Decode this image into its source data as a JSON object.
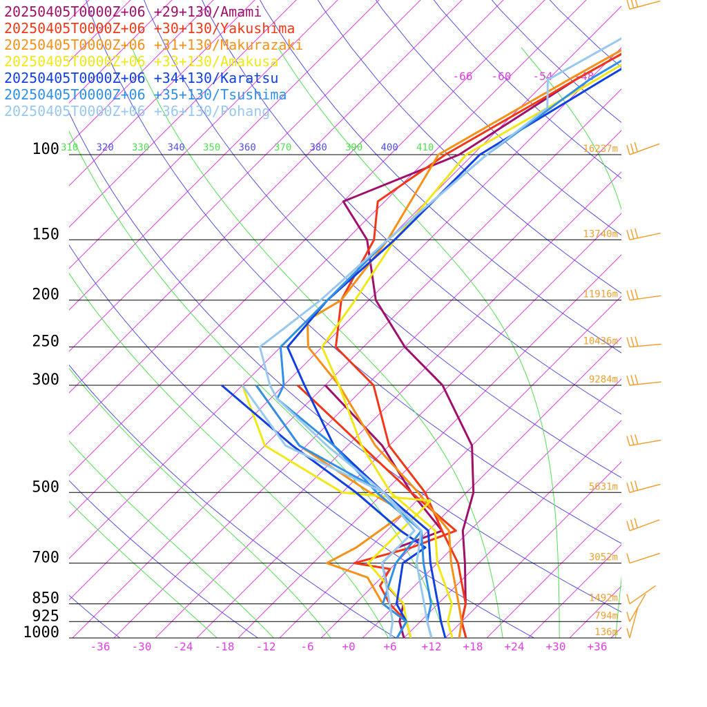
{
  "legend": [
    {
      "label": "20250405T0000Z+06 +29+130/Amami",
      "color": "#a0106a"
    },
    {
      "label": "20250405T0000Z+06 +30+130/Yakushima",
      "color": "#f03818"
    },
    {
      "label": "20250405T0000Z+06 +31+130/Makurazaki",
      "color": "#f89018"
    },
    {
      "label": "20250405T0000Z+06 +33+130/Amakusa",
      "color": "#f0e818"
    },
    {
      "label": "20250405T0000Z+06 +34+130/Karatsu",
      "color": "#1040e0"
    },
    {
      "label": "20250405T0000Z+06 +35+130/Tsushima",
      "color": "#3090e8"
    },
    {
      "label": "20250405T0000Z+06 +36+130/Pohang",
      "color": "#98c8f0"
    }
  ],
  "colors": {
    "isobar": "#000000",
    "isotherm": "#e040e0",
    "dry_adiabat": "#5050e0",
    "moist_adiabat": "#50e050",
    "height_label": "#f0a030",
    "wind_barb": "#f0a030"
  },
  "chart_data": {
    "type": "line",
    "title": "",
    "xlabel": "",
    "ylabel": "",
    "pressure_levels": [
      {
        "p": 100,
        "label": "100",
        "height": "16237m"
      },
      {
        "p": 150,
        "label": "150",
        "height": "13740m"
      },
      {
        "p": 200,
        "label": "200",
        "height": "11916m"
      },
      {
        "p": 250,
        "label": "250",
        "height": "10436m"
      },
      {
        "p": 300,
        "label": "300",
        "height": "9284m"
      },
      {
        "p": 500,
        "label": "500",
        "height": "5631m"
      },
      {
        "p": 700,
        "label": "700",
        "height": "3052m"
      },
      {
        "p": 850,
        "label": "850",
        "height": "1492m"
      },
      {
        "p": 925,
        "label": "925",
        "height": "794m"
      },
      {
        "p": 1000,
        "label": "1000",
        "height": "136m"
      }
    ],
    "temperature_ticks": [
      "-36",
      "-30",
      "-24",
      "-18",
      "-12",
      "-6",
      "+0",
      "+6",
      "+12",
      "+18",
      "+24",
      "+30",
      "+36"
    ],
    "upper_isotherm_labels": [
      "-66",
      "-60",
      "-54",
      "-48"
    ],
    "theta_labels": [
      {
        "text": "310",
        "kind": "moist"
      },
      {
        "text": "320",
        "kind": "dry"
      },
      {
        "text": "330",
        "kind": "moist"
      },
      {
        "text": "340",
        "kind": "dry"
      },
      {
        "text": "350",
        "kind": "moist"
      },
      {
        "text": "360",
        "kind": "dry"
      },
      {
        "text": "370",
        "kind": "moist"
      },
      {
        "text": "380",
        "kind": "dry"
      },
      {
        "text": "390",
        "kind": "moist"
      },
      {
        "text": "400",
        "kind": "dry"
      },
      {
        "text": "410",
        "kind": "moist"
      }
    ],
    "wind_pressures": [
      50,
      100,
      150,
      200,
      250,
      300,
      400,
      500,
      600,
      700,
      850,
      925,
      1000
    ],
    "series": [
      {
        "name": "20250405T0000Z+06 +29+130/Amami",
        "temperature": [
          [
            1000,
            17
          ],
          [
            925,
            14
          ],
          [
            850,
            12
          ],
          [
            700,
            6
          ],
          [
            600,
            1
          ],
          [
            500,
            -3
          ],
          [
            400,
            -10
          ],
          [
            300,
            -23
          ],
          [
            250,
            -34
          ],
          [
            200,
            -45
          ],
          [
            150,
            -55
          ],
          [
            125,
            -64
          ],
          [
            100,
            -54
          ],
          [
            70,
            -48
          ],
          [
            50,
            -40
          ]
        ],
        "dewpoint": [
          [
            1000,
            8
          ],
          [
            925,
            5
          ],
          [
            850,
            3
          ],
          [
            780,
            -2
          ],
          [
            700,
            -6
          ],
          [
            650,
            -6
          ],
          [
            600,
            -2
          ],
          [
            500,
            -12
          ],
          [
            400,
            -23
          ],
          [
            300,
            -40
          ]
        ]
      },
      {
        "name": "20250405T0000Z+06 +30+130/Yakushima",
        "temperature": [
          [
            1000,
            17
          ],
          [
            925,
            14
          ],
          [
            850,
            12
          ],
          [
            700,
            5
          ],
          [
            600,
            -2
          ],
          [
            500,
            -10
          ],
          [
            400,
            -22
          ],
          [
            300,
            -33
          ],
          [
            250,
            -44
          ],
          [
            200,
            -50
          ],
          [
            150,
            -54
          ],
          [
            125,
            -59
          ],
          [
            100,
            -56
          ],
          [
            70,
            -48
          ],
          [
            50,
            -40
          ]
        ],
        "dewpoint": [
          [
            1000,
            9
          ],
          [
            925,
            6
          ],
          [
            850,
            1
          ],
          [
            780,
            -3
          ],
          [
            720,
            -4
          ],
          [
            700,
            -10
          ],
          [
            650,
            -4
          ],
          [
            600,
            0
          ],
          [
            500,
            -12
          ],
          [
            400,
            -26
          ],
          [
            300,
            -44
          ]
        ]
      },
      {
        "name": "20250405T0000Z+06 +31+130/Makurazaki",
        "temperature": [
          [
            1000,
            16
          ],
          [
            925,
            14
          ],
          [
            850,
            11
          ],
          [
            700,
            4
          ],
          [
            600,
            -1
          ],
          [
            500,
            -11
          ],
          [
            400,
            -24
          ],
          [
            300,
            -38
          ],
          [
            250,
            -48
          ],
          [
            220,
            -52
          ],
          [
            200,
            -50
          ],
          [
            150,
            -52
          ],
          [
            100,
            -57
          ],
          [
            70,
            -49
          ],
          [
            50,
            -41
          ]
        ],
        "dewpoint": [
          [
            1000,
            9
          ],
          [
            925,
            6
          ],
          [
            850,
            0
          ],
          [
            750,
            -6
          ],
          [
            700,
            -14
          ],
          [
            650,
            -12
          ],
          [
            550,
            -10
          ],
          [
            500,
            -18
          ],
          [
            400,
            -35
          ],
          [
            300,
            -50
          ]
        ]
      },
      {
        "name": "20250405T0000Z+06 +33+130/Amakusa",
        "temperature": [
          [
            1000,
            15
          ],
          [
            925,
            12
          ],
          [
            850,
            10
          ],
          [
            700,
            2
          ],
          [
            600,
            -3
          ],
          [
            500,
            -15
          ],
          [
            400,
            -26
          ],
          [
            300,
            -38
          ],
          [
            250,
            -46
          ],
          [
            200,
            -48
          ],
          [
            150,
            -51
          ],
          [
            100,
            -53
          ],
          [
            70,
            -45
          ],
          [
            50,
            -38
          ]
        ],
        "dewpoint": [
          [
            1000,
            9
          ],
          [
            925,
            6
          ],
          [
            850,
            3
          ],
          [
            700,
            -8
          ],
          [
            600,
            -8
          ],
          [
            520,
            -8
          ],
          [
            500,
            -22
          ],
          [
            400,
            -40
          ],
          [
            300,
            -52
          ]
        ]
      },
      {
        "name": "20250405T0000Z+06 +34+130/Karatsu",
        "temperature": [
          [
            1000,
            14
          ],
          [
            925,
            11
          ],
          [
            850,
            8
          ],
          [
            700,
            1
          ],
          [
            600,
            -4
          ],
          [
            500,
            -16
          ],
          [
            400,
            -30
          ],
          [
            300,
            -43
          ],
          [
            250,
            -51
          ],
          [
            200,
            -52
          ],
          [
            150,
            -51
          ],
          [
            100,
            -51
          ],
          [
            70,
            -44
          ],
          [
            50,
            -37
          ]
        ],
        "dewpoint": [
          [
            1000,
            7
          ],
          [
            925,
            6
          ],
          [
            850,
            2
          ],
          [
            700,
            -3
          ],
          [
            650,
            -2
          ],
          [
            600,
            -8
          ],
          [
            500,
            -20
          ],
          [
            400,
            -36
          ],
          [
            300,
            -55
          ]
        ]
      },
      {
        "name": "20250405T0000Z+06 +35+130/Tsushima",
        "temperature": [
          [
            1000,
            12
          ],
          [
            925,
            9
          ],
          [
            850,
            7
          ],
          [
            700,
            0
          ],
          [
            600,
            -5
          ],
          [
            500,
            -17
          ],
          [
            400,
            -30
          ],
          [
            320,
            -45
          ],
          [
            300,
            -46
          ],
          [
            250,
            -52
          ],
          [
            200,
            -52
          ],
          [
            150,
            -52
          ],
          [
            100,
            -50
          ],
          [
            70,
            -46
          ],
          [
            50,
            -39
          ]
        ],
        "dewpoint": [
          [
            1000,
            7
          ],
          [
            925,
            6
          ],
          [
            850,
            0
          ],
          [
            700,
            -4
          ],
          [
            600,
            -5
          ],
          [
            500,
            -16
          ],
          [
            400,
            -35
          ],
          [
            300,
            -50
          ]
        ]
      },
      {
        "name": "20250405T0000Z+06 +36+130/Pohang",
        "temperature": [
          [
            1000,
            12
          ],
          [
            925,
            9
          ],
          [
            850,
            6
          ],
          [
            700,
            -1
          ],
          [
            600,
            -5
          ],
          [
            500,
            -16
          ],
          [
            400,
            -31
          ],
          [
            320,
            -45
          ],
          [
            300,
            -48
          ],
          [
            250,
            -55
          ],
          [
            200,
            -53
          ],
          [
            150,
            -52
          ],
          [
            100,
            -50
          ],
          [
            80,
            -48
          ],
          [
            70,
            -52
          ],
          [
            50,
            -44
          ]
        ],
        "dewpoint": [
          [
            1000,
            6
          ],
          [
            925,
            4
          ],
          [
            850,
            1
          ],
          [
            700,
            -6
          ],
          [
            600,
            -6
          ],
          [
            500,
            -16
          ],
          [
            400,
            -37
          ],
          [
            300,
            -52
          ]
        ]
      }
    ]
  }
}
